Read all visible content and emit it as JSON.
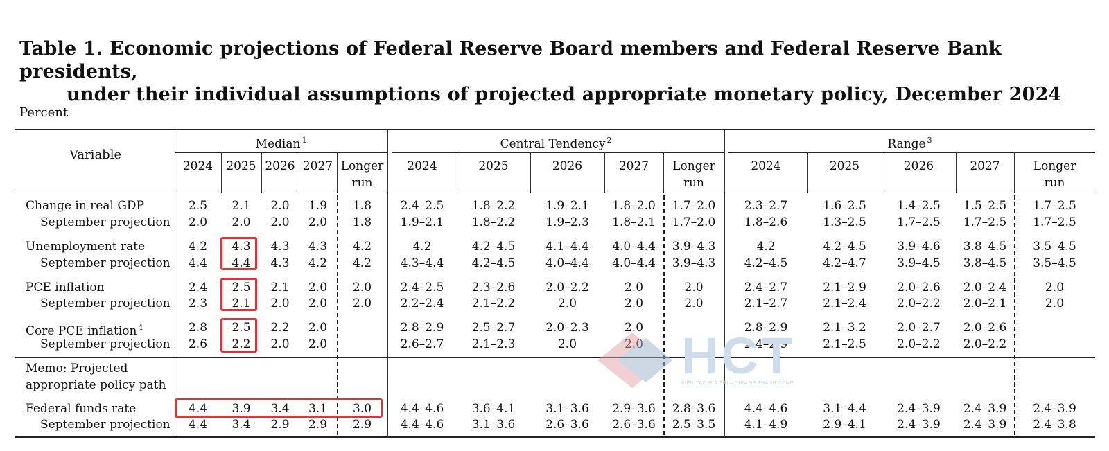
{
  "title_line1": "Table 1. Economic projections of Federal Reserve Board members and Federal Reserve Bank presidents,",
  "title_line2": "under their individual assumptions of projected appropriate monetary policy, December 2024",
  "unit_label": "Percent",
  "header": {
    "variable": "Variable",
    "groups": [
      {
        "label": "Median",
        "sup": "1"
      },
      {
        "label": "Central Tendency",
        "sup": "2"
      },
      {
        "label": "Range",
        "sup": "3"
      }
    ],
    "years": [
      "2024",
      "2025",
      "2026",
      "2027"
    ],
    "longer_run_1": "Longer",
    "longer_run_2": "run"
  },
  "rows": [
    {
      "label": "Change in real GDP",
      "sup": "",
      "indent": false,
      "values": [
        "2.5",
        "2.1",
        "2.0",
        "1.9",
        "1.8",
        "2.4–2.5",
        "1.8–2.2",
        "1.9–2.1",
        "1.8–2.0",
        "1.7–2.0",
        "2.3–2.7",
        "1.6–2.5",
        "1.4–2.5",
        "1.5–2.5",
        "1.7–2.5"
      ]
    },
    {
      "label": "September projection",
      "sup": "",
      "indent": true,
      "values": [
        "2.0",
        "2.0",
        "2.0",
        "2.0",
        "1.8",
        "1.9–2.1",
        "1.8–2.2",
        "1.9–2.3",
        "1.8–2.1",
        "1.7–2.0",
        "1.8–2.6",
        "1.3–2.5",
        "1.7–2.5",
        "1.7–2.5",
        "1.7–2.5"
      ]
    },
    {
      "label": "Unemployment rate",
      "sup": "",
      "indent": false,
      "values": [
        "4.2",
        "4.3",
        "4.3",
        "4.3",
        "4.2",
        "4.2",
        "4.2–4.5",
        "4.1–4.4",
        "4.0–4.4",
        "3.9–4.3",
        "4.2",
        "4.2–4.5",
        "3.9–4.6",
        "3.8–4.5",
        "3.5–4.5"
      ]
    },
    {
      "label": "September projection",
      "sup": "",
      "indent": true,
      "values": [
        "4.4",
        "4.4",
        "4.3",
        "4.2",
        "4.2",
        "4.3–4.4",
        "4.2–4.5",
        "4.0–4.4",
        "4.0–4.4",
        "3.9–4.3",
        "4.2–4.5",
        "4.2–4.7",
        "3.9–4.5",
        "3.8–4.5",
        "3.5–4.5"
      ]
    },
    {
      "label": "PCE inflation",
      "sup": "",
      "indent": false,
      "values": [
        "2.4",
        "2.5",
        "2.1",
        "2.0",
        "2.0",
        "2.4–2.5",
        "2.3–2.6",
        "2.0–2.2",
        "2.0",
        "2.0",
        "2.4–2.7",
        "2.1–2.9",
        "2.0–2.6",
        "2.0–2.4",
        "2.0"
      ]
    },
    {
      "label": "September projection",
      "sup": "",
      "indent": true,
      "values": [
        "2.3",
        "2.1",
        "2.0",
        "2.0",
        "2.0",
        "2.2–2.4",
        "2.1–2.2",
        "2.0",
        "2.0",
        "2.0",
        "2.1–2.7",
        "2.1–2.4",
        "2.0–2.2",
        "2.0–2.1",
        "2.0"
      ]
    },
    {
      "label": "Core PCE inflation",
      "sup": "4",
      "indent": false,
      "values": [
        "2.8",
        "2.5",
        "2.2",
        "2.0",
        "",
        "2.8–2.9",
        "2.5–2.7",
        "2.0–2.3",
        "2.0",
        "",
        "2.8–2.9",
        "2.1–3.2",
        "2.0–2.7",
        "2.0–2.6",
        ""
      ]
    },
    {
      "label": "September projection",
      "sup": "",
      "indent": true,
      "values": [
        "2.6",
        "2.2",
        "2.0",
        "2.0",
        "",
        "2.6–2.7",
        "2.1–2.3",
        "2.0",
        "2.0",
        "",
        "2.4–2.9",
        "2.1–2.5",
        "2.0–2.2",
        "2.0–2.2",
        ""
      ]
    },
    {
      "label": "Federal funds rate",
      "sup": "",
      "indent": false,
      "values": [
        "4.4",
        "3.9",
        "3.4",
        "3.1",
        "3.0",
        "4.4–4.6",
        "3.6–4.1",
        "3.1–3.6",
        "2.9–3.6",
        "2.8–3.6",
        "4.4–4.6",
        "3.1–4.4",
        "2.4–3.9",
        "2.4–3.9",
        "2.4–3.9"
      ]
    },
    {
      "label": "September projection",
      "sup": "",
      "indent": true,
      "values": [
        "4.4",
        "3.4",
        "2.9",
        "2.9",
        "2.9",
        "4.4–4.6",
        "3.1–3.6",
        "2.6–3.6",
        "2.6–3.6",
        "2.5–3.5",
        "4.1–4.9",
        "2.9–4.1",
        "2.4–3.9",
        "2.4–3.9",
        "2.4–3.8"
      ]
    }
  ],
  "memo_line1": "Memo: Projected",
  "memo_line2": "appropriate policy path",
  "watermark": {
    "text": "HCT",
    "tagline": "KIẾN TẠO GIÁ TRỊ – CHIA SẺ THÀNH CÔNG"
  },
  "colors": {
    "highlight": "#d8363e",
    "watermark_red": "#e3a3a8",
    "watermark_blue": "#9fb3cc"
  }
}
